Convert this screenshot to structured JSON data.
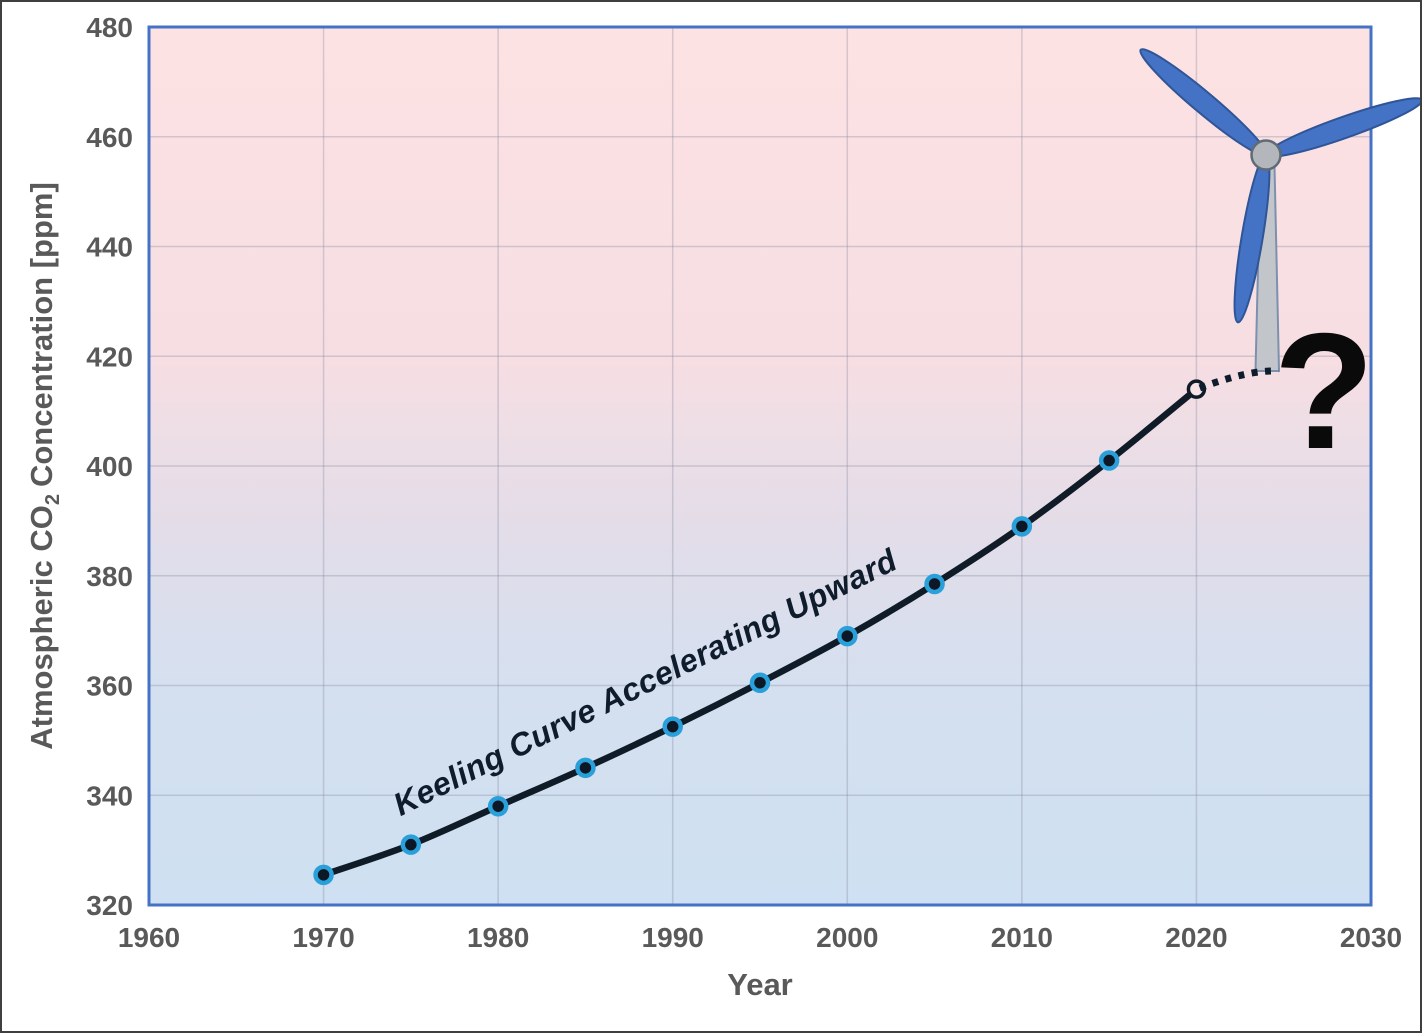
{
  "chart_data": {
    "type": "line",
    "title": "",
    "xlabel": "Year",
    "ylabel": "Atmospheric CO2 Concentration [ppm]",
    "ylabel_parts": {
      "pre": "Atmospheric CO",
      "sub": "2",
      "post": "Concentration [ppm]"
    },
    "xlim": [
      1960,
      2030
    ],
    "ylim": [
      320,
      480
    ],
    "x_ticks": [
      1960,
      1970,
      1980,
      1990,
      2000,
      2010,
      2020,
      2030
    ],
    "y_ticks": [
      320,
      340,
      360,
      380,
      400,
      420,
      440,
      460,
      480
    ],
    "grid": true,
    "x": [
      1970,
      1975,
      1980,
      1985,
      1990,
      1995,
      2000,
      2005,
      2010,
      2015,
      2020
    ],
    "series": [
      {
        "name": "Keeling Curve (atmospheric CO2, observed)",
        "values": [
          325.5,
          331,
          338,
          345,
          352.5,
          360.5,
          369,
          378.5,
          389,
          401,
          414
        ],
        "last_point_open_marker": true
      }
    ],
    "projection": {
      "style": "dotted",
      "x": [
        2020,
        2023,
        2024.7
      ],
      "values": [
        414,
        417.6,
        417.3
      ]
    },
    "annotations": {
      "curve_label": {
        "text": "Keeling Curve Accelerating Upward"
      },
      "question_mark": {
        "text": "?"
      }
    }
  },
  "decorations": {
    "turbine": "wind-turbine illustration, top right of plot"
  },
  "colors": {
    "line": "#101b28",
    "marker_ring": "#2aa0da",
    "marker_fill": "#0c1826",
    "open_marker_fill": "#f8e3e6",
    "plot_border": "#4472c4",
    "plot_bg_top": "#fde2e3",
    "plot_bg_bottom": "#cee0f1",
    "grid": "#80869a",
    "tick_text": "#595959",
    "annotation_text": "#0e1c2c",
    "question_mark": "#0a0a0a",
    "turbine_blade": "#4472c4",
    "turbine_blade_stroke": "#2f5597",
    "turbine_tower": "#c2c6ca",
    "turbine_hub": "#b3b7bb"
  }
}
